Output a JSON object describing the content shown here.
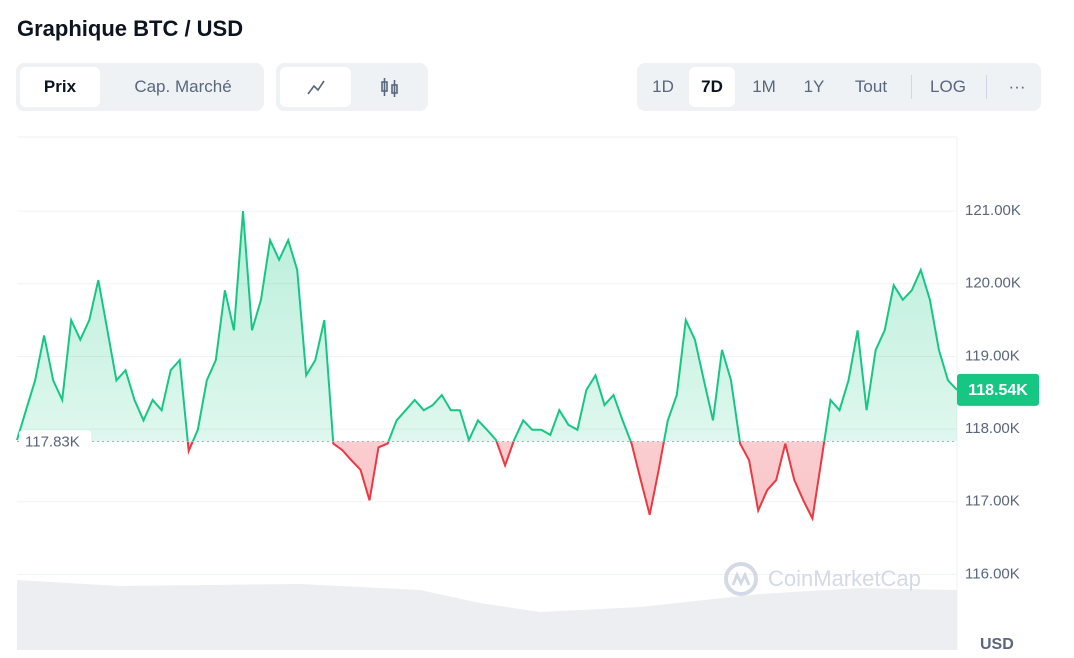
{
  "header": {
    "title": "Graphique BTC / USD"
  },
  "tabs": [
    "Prix",
    "Cap. Marché"
  ],
  "ranges": [
    "1D",
    "7D",
    "1M",
    "1Y",
    "Tout"
  ],
  "scale_button": "LOG",
  "more_button": "···",
  "watermark": "CoinMarketCap",
  "chart_data": {
    "type": "line",
    "currency": "USD",
    "ylim": [
      114.96,
      122.02
    ],
    "yticks": [
      {
        "value": 116,
        "label": "116.00K"
      },
      {
        "value": 117,
        "label": "117.00K"
      },
      {
        "value": 118,
        "label": "118.00K"
      },
      {
        "value": 119,
        "label": "119.00K"
      },
      {
        "value": 120,
        "label": "120.00K"
      },
      {
        "value": 121,
        "label": "121.00K"
      }
    ],
    "grid": true,
    "reference_line": {
      "value": 117.83,
      "label": "117.83K"
    },
    "last_price": {
      "value": 118.54,
      "label": "118.54K"
    },
    "up_color": "#16c784",
    "down_color": "#ea3943",
    "series": [
      {
        "values": [
          117.85,
          118.26,
          118.67,
          119.29,
          118.67,
          118.4,
          119.5,
          119.23,
          119.5,
          120.05,
          119.36,
          118.67,
          118.81,
          118.4,
          118.12,
          118.4,
          118.26,
          118.81,
          118.95,
          117.7,
          117.99,
          118.67,
          118.95,
          119.91,
          119.36,
          121.0,
          119.36,
          119.78,
          120.6,
          120.33,
          120.6,
          120.19,
          118.74,
          118.95,
          119.5,
          117.8,
          117.71,
          117.57,
          117.44,
          117.02,
          117.75,
          117.8,
          118.12,
          118.26,
          118.4,
          118.26,
          118.33,
          118.47,
          118.26,
          118.26,
          117.85,
          118.12,
          117.99,
          117.85,
          117.5,
          117.85,
          118.12,
          117.99,
          117.99,
          117.92,
          118.26,
          118.06,
          117.99,
          118.54,
          118.74,
          118.33,
          118.47,
          118.12,
          117.8,
          117.3,
          116.82,
          117.44,
          118.12,
          118.47,
          119.5,
          119.23,
          118.67,
          118.12,
          119.09,
          118.67,
          117.8,
          117.57,
          116.88,
          117.16,
          117.3,
          117.8,
          117.3,
          117.02,
          116.77,
          117.57,
          118.4,
          118.26,
          118.67,
          119.36,
          118.26,
          119.09,
          119.36,
          119.98,
          119.78,
          119.91,
          120.19,
          119.78,
          119.09,
          118.67,
          118.54
        ]
      }
    ]
  }
}
